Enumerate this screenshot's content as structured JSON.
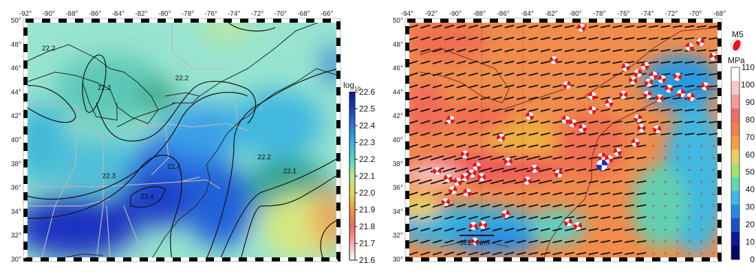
{
  "left_map": {
    "lon_ticks": [
      -92,
      -90,
      -88,
      -86,
      -84,
      -82,
      -80,
      -78,
      -76,
      -74,
      -72,
      -70,
      -68,
      -66
    ],
    "lat_ticks": [
      30,
      32,
      34,
      36,
      38,
      40,
      42,
      44,
      46,
      48,
      50
    ],
    "lon_range": [
      -92,
      -65
    ],
    "lat_range": [
      30,
      50
    ],
    "colorbar": {
      "title": "log",
      "title_sub": "10",
      "labels": [
        "22.6",
        "22.5",
        "22.4",
        "22.3",
        "22.2",
        "22.1",
        "22.0",
        "21.9",
        "21.8",
        "21.7",
        "21.6"
      ],
      "colors": [
        "#0a1a8a",
        "#1a3cc8",
        "#2a78e0",
        "#30b4e8",
        "#52d8c8",
        "#b8e890",
        "#e6d850",
        "#f09a40",
        "#f06a60",
        "#f8a8b0",
        "#ffffff"
      ]
    },
    "contour_labels": [
      {
        "text": "22.2",
        "lon": -78.5,
        "lat": 45.0
      },
      {
        "text": "22.2",
        "lon": -85.2,
        "lat": 44.2
      },
      {
        "text": "22.2",
        "lon": -90.0,
        "lat": 47.5
      },
      {
        "text": "22.3",
        "lon": -84.8,
        "lat": 36.8
      },
      {
        "text": "22.4",
        "lon": -79.2,
        "lat": 37.6
      },
      {
        "text": "22.4",
        "lon": -81.5,
        "lat": 35.1
      },
      {
        "text": "22.2",
        "lon": -71.4,
        "lat": 38.4
      },
      {
        "text": "22.1",
        "lon": -69.2,
        "lat": 37.2
      }
    ]
  },
  "right_map": {
    "lon_ticks": [
      -94,
      -92,
      -90,
      -88,
      -86,
      -84,
      -82,
      -80,
      -78,
      -76,
      -74,
      -72,
      -70,
      -68
    ],
    "lat_ticks": [
      30,
      32,
      34,
      36,
      38,
      40,
      42,
      44,
      46,
      48,
      50
    ],
    "lon_range": [
      -94,
      -68
    ],
    "lat_range": [
      30,
      50
    ],
    "magnitude_legend": "M5",
    "scale_label": "3e12 N/m",
    "colorbar": {
      "title": "MPa",
      "labels": [
        "110",
        "100",
        "90",
        "80",
        "70",
        "60",
        "50",
        "40",
        "30",
        "20",
        "10",
        "0"
      ],
      "colors": [
        "#ffffff",
        "#f8c8c8",
        "#f49a9a",
        "#f06a6a",
        "#f08050",
        "#f0a040",
        "#e8d060",
        "#a8e070",
        "#60d8b0",
        "#40b8e8",
        "#2a8ae0",
        "#1a50c8",
        "#0a1a9a",
        "#050a60"
      ]
    },
    "events": [
      {
        "lon": -79.5,
        "lat": 49.4
      },
      {
        "lon": -81.8,
        "lat": 46.7
      },
      {
        "lon": -80.7,
        "lat": 44.6
      },
      {
        "lon": -69.6,
        "lat": 48.2
      },
      {
        "lon": -70.5,
        "lat": 47.8
      },
      {
        "lon": -68.5,
        "lat": 47.0
      },
      {
        "lon": -75.8,
        "lat": 46.1
      },
      {
        "lon": -74.8,
        "lat": 45.6
      },
      {
        "lon": -74.2,
        "lat": 46.2
      },
      {
        "lon": -75.2,
        "lat": 45.0
      },
      {
        "lon": -73.9,
        "lat": 44.8
      },
      {
        "lon": -73.5,
        "lat": 45.4
      },
      {
        "lon": -72.8,
        "lat": 45.1
      },
      {
        "lon": -71.5,
        "lat": 45.3
      },
      {
        "lon": -74.0,
        "lat": 43.8
      },
      {
        "lon": -73.0,
        "lat": 43.5
      },
      {
        "lon": -71.2,
        "lat": 43.9
      },
      {
        "lon": -70.4,
        "lat": 43.6
      },
      {
        "lon": -72.2,
        "lat": 44.3
      },
      {
        "lon": -69.2,
        "lat": 44.5
      },
      {
        "lon": -78.6,
        "lat": 43.7
      },
      {
        "lon": -77.2,
        "lat": 43.1
      },
      {
        "lon": -76.0,
        "lat": 43.8
      },
      {
        "lon": -78.6,
        "lat": 42.5
      },
      {
        "lon": -80.8,
        "lat": 41.7
      },
      {
        "lon": -80.2,
        "lat": 41.4
      },
      {
        "lon": -79.4,
        "lat": 41.0
      },
      {
        "lon": -83.8,
        "lat": 42.0
      },
      {
        "lon": -90.4,
        "lat": 41.7
      },
      {
        "lon": -86.2,
        "lat": 40.2
      },
      {
        "lon": -89.2,
        "lat": 38.8
      },
      {
        "lon": -85.6,
        "lat": 38.2
      },
      {
        "lon": -83.4,
        "lat": 37.6
      },
      {
        "lon": -91.5,
        "lat": 37.4
      },
      {
        "lon": -90.6,
        "lat": 36.8
      },
      {
        "lon": -89.8,
        "lat": 36.5
      },
      {
        "lon": -89.2,
        "lat": 36.9
      },
      {
        "lon": -88.6,
        "lat": 37.2
      },
      {
        "lon": -87.8,
        "lat": 36.9
      },
      {
        "lon": -90.2,
        "lat": 35.8
      },
      {
        "lon": -89.0,
        "lat": 35.6
      },
      {
        "lon": -90.8,
        "lat": 34.8
      },
      {
        "lon": -88.2,
        "lat": 37.8
      },
      {
        "lon": -84.0,
        "lat": 36.6
      },
      {
        "lon": -81.4,
        "lat": 37.2
      },
      {
        "lon": -77.8,
        "lat": 38.6
      },
      {
        "lon": -77.2,
        "lat": 38.4
      },
      {
        "lon": -76.5,
        "lat": 39.0
      },
      {
        "lon": -75.0,
        "lat": 39.8
      },
      {
        "lon": -74.5,
        "lat": 41.0
      },
      {
        "lon": -73.2,
        "lat": 40.9
      },
      {
        "lon": -74.8,
        "lat": 41.8
      },
      {
        "lon": -85.8,
        "lat": 33.8
      },
      {
        "lon": -88.5,
        "lat": 32.8
      },
      {
        "lon": -87.7,
        "lat": 32.9
      },
      {
        "lon": -80.6,
        "lat": 33.1
      },
      {
        "lon": -79.8,
        "lat": 32.8
      },
      {
        "lon": -88.4,
        "lat": 31.5
      }
    ],
    "highlight_event": {
      "lon": -77.8,
      "lat": 37.9,
      "color": "#1a28d0"
    }
  },
  "colors": {
    "compression": "#e8141c",
    "frame": "#000000",
    "coast": "#222222",
    "state": "#b0b0b0"
  }
}
